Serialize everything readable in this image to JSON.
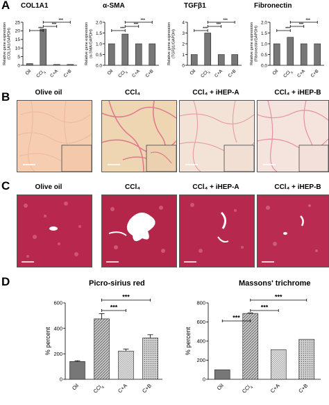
{
  "panels": {
    "A": "A",
    "B": "B",
    "C": "C",
    "D": "D"
  },
  "colors": {
    "bar_dark": "#777777",
    "bar_light": "#dddddd",
    "sirius_bg": "#f3d8bf",
    "sirius_fiber": "#e05878",
    "trichrome_bg": "#b2264a",
    "trichrome_vessel": "#ffffff"
  },
  "panel_B": {
    "labels": [
      "Olive oil",
      "CCl₄",
      "CCl₄ + iHEP-A",
      "CCl₄ + iHEP-B"
    ]
  },
  "panel_C": {
    "labels": [
      "Olive oil",
      "CCl₄",
      "CCl₄ + iHEP-A",
      "CCl₄ + iHEP-B"
    ]
  },
  "chart_data": [
    {
      "type": "bar",
      "panel": "A",
      "title": "COL1A1",
      "ylabel": "Relative gene expression\n(COL1A1/GAPDH)",
      "categories": [
        "Oil",
        "CCl₄",
        "C+A",
        "C+B"
      ],
      "values": [
        1,
        21,
        0.5,
        0.5
      ],
      "ylim": [
        0,
        25
      ],
      "yticks": [
        0,
        5,
        10,
        15,
        20,
        25
      ],
      "significance": [
        {
          "from": 0,
          "to": 1,
          "label": "***"
        },
        {
          "from": 1,
          "to": 2,
          "label": "***"
        },
        {
          "from": 1,
          "to": 3,
          "label": "***"
        }
      ]
    },
    {
      "type": "bar",
      "panel": "A",
      "title": "α-SMA",
      "ylabel": "Relative gene expression\n(α-SMA/GAPDH)",
      "categories": [
        "Oil",
        "CCl₄",
        "C+A",
        "C+B"
      ],
      "values": [
        1,
        1.45,
        1.0,
        1.0
      ],
      "ylim": [
        0,
        2
      ],
      "yticks": [
        0.0,
        0.5,
        1.0,
        1.5,
        2.0
      ],
      "significance": [
        {
          "from": 0,
          "to": 1,
          "label": "***"
        },
        {
          "from": 1,
          "to": 2,
          "label": "***"
        },
        {
          "from": 1,
          "to": 3,
          "label": "***"
        }
      ]
    },
    {
      "type": "bar",
      "panel": "A",
      "title": "TGFβ1",
      "ylabel": "Relative gene expression\n(TGFβ1/GAPDH)",
      "categories": [
        "Oil",
        "CCl₄",
        "C+A",
        "C+B"
      ],
      "values": [
        1,
        3.0,
        1.0,
        1.0
      ],
      "ylim": [
        0,
        4
      ],
      "yticks": [
        0,
        1,
        2,
        3,
        4
      ],
      "significance": [
        {
          "from": 0,
          "to": 1,
          "label": "***"
        },
        {
          "from": 1,
          "to": 2,
          "label": "***"
        },
        {
          "from": 1,
          "to": 3,
          "label": "***"
        }
      ]
    },
    {
      "type": "bar",
      "panel": "A",
      "title": "Fibronectin",
      "ylabel": "Relative gene expression\n(Fibronectin/GAPDH)",
      "categories": [
        "Oil",
        "CCl₄",
        "C+A",
        "C+B"
      ],
      "values": [
        1,
        1.3,
        1.0,
        1.0
      ],
      "ylim": [
        0,
        2
      ],
      "yticks": [
        0.0,
        0.5,
        1.0,
        1.5,
        2.0
      ],
      "significance": [
        {
          "from": 0,
          "to": 1,
          "label": "***"
        },
        {
          "from": 1,
          "to": 2,
          "label": "***"
        },
        {
          "from": 1,
          "to": 3,
          "label": "***"
        }
      ]
    },
    {
      "type": "bar",
      "panel": "D",
      "title": "Picro-sirius red",
      "ylabel": "% percent",
      "categories": [
        "Oil",
        "CCl₄",
        "C+A",
        "C+B"
      ],
      "values": [
        140,
        475,
        222,
        325
      ],
      "errors": [
        6,
        40,
        15,
        25
      ],
      "ylim": [
        0,
        600
      ],
      "yticks": [
        0,
        200,
        400,
        600
      ],
      "significance": [
        {
          "from": 1,
          "to": 2,
          "label": "***"
        },
        {
          "from": 1,
          "to": 3,
          "label": "***"
        }
      ]
    },
    {
      "type": "bar",
      "panel": "D",
      "title": "Massons' trichrome",
      "ylabel": "% percent",
      "categories": [
        "Oil",
        "CCl₄",
        "C+A",
        "C+B"
      ],
      "values": [
        100,
        690,
        310,
        420
      ],
      "errors": [
        0,
        5,
        0,
        0
      ],
      "ylim": [
        0,
        800
      ],
      "yticks": [
        0,
        200,
        400,
        600,
        800
      ],
      "significance": [
        {
          "from": 0,
          "to": 1,
          "label": "***"
        },
        {
          "from": 1,
          "to": 2,
          "label": "***"
        },
        {
          "from": 1,
          "to": 3,
          "label": "***"
        }
      ]
    }
  ]
}
